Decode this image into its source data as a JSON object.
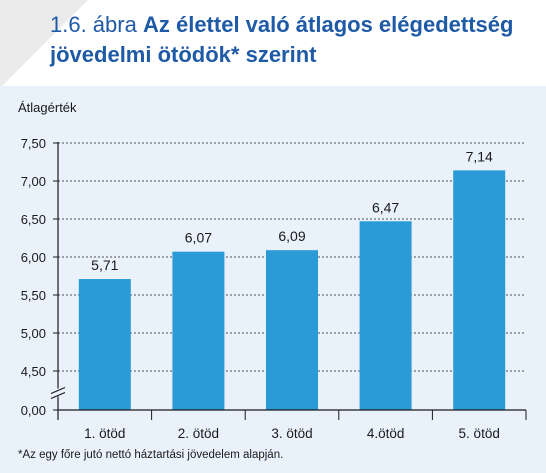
{
  "header": {
    "number": "1.6. ábra",
    "title": "Az élettel való átlagos elégedettség jövedelmi ötödök* szerint"
  },
  "footnote": "*Az egy főre jutó nettó háztartási jövedelem alapján.",
  "colors": {
    "title": "#1f5aa6",
    "bar": "#2a9bd6",
    "panel": "#e9f1fa",
    "grid": "#1a1a1a"
  },
  "chart_data": {
    "type": "bar",
    "categories": [
      "1. ötöd",
      "2. ötöd",
      "3. ötöd",
      "4.ötöd",
      "5. ötöd"
    ],
    "values": [
      5.71,
      6.07,
      6.09,
      6.47,
      7.14
    ],
    "value_labels": [
      "5,71",
      "6,07",
      "6,09",
      "6,47",
      "7,14"
    ],
    "ylabel": "Átlagérték",
    "yticks": [
      0.0,
      4.5,
      5.0,
      5.5,
      6.0,
      6.5,
      7.0,
      7.5
    ],
    "ytick_labels": [
      "0,00",
      "4,50",
      "5,00",
      "5,50",
      "6,00",
      "6,50",
      "7,00",
      "7,50"
    ],
    "ylim": [
      4.5,
      7.5
    ],
    "axis_break": true,
    "grid": "horizontal dashed"
  }
}
